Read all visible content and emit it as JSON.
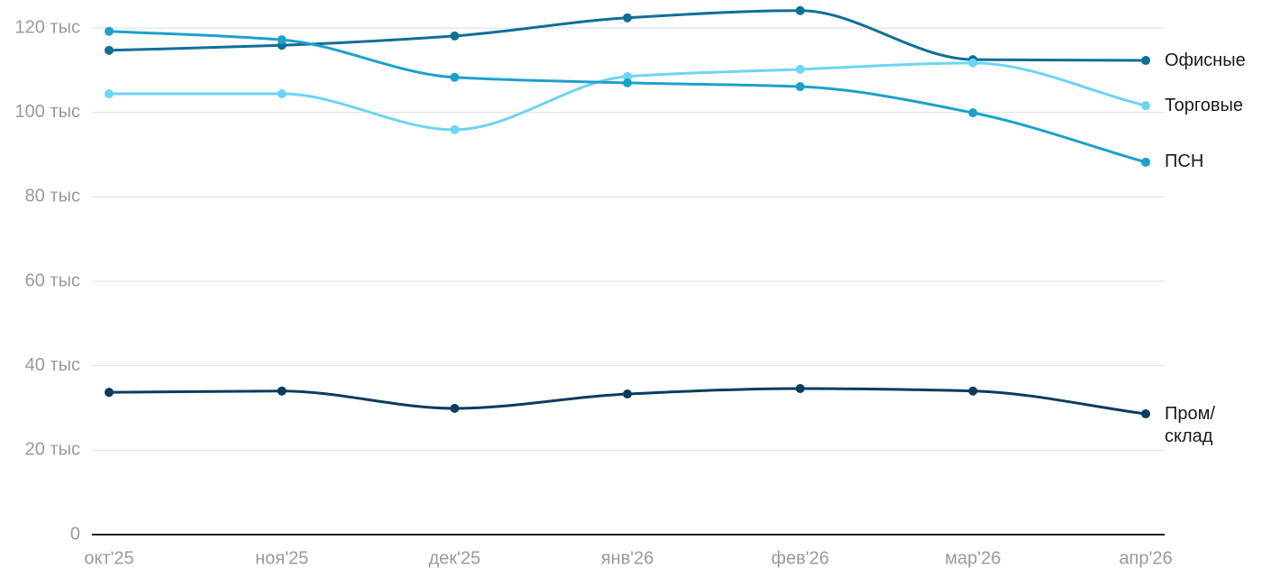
{
  "chart_data": {
    "type": "line",
    "categories": [
      "окт'25",
      "ноя'25",
      "дек'25",
      "янв'26",
      "фев'26",
      "мар'26",
      "апр'26"
    ],
    "series": [
      {
        "name": "Офисные",
        "color": "#0e6f97",
        "values": [
          114700,
          115900,
          118100,
          122400,
          124100,
          112500,
          112300
        ]
      },
      {
        "name": "Торговые",
        "color": "#6dd4f4",
        "values": [
          104400,
          104400,
          95900,
          108500,
          110200,
          111700,
          101600
        ]
      },
      {
        "name": "ПСН",
        "color": "#1ca1cb",
        "values": [
          119200,
          117200,
          108300,
          107000,
          106100,
          99900,
          88200
        ]
      },
      {
        "name": "Пром/склад",
        "color": "#0b3c5d",
        "values": [
          33700,
          34000,
          29900,
          33300,
          34600,
          34000,
          28600
        ]
      }
    ],
    "ylim": [
      0,
      120000
    ],
    "yticks": [
      0,
      {
        "value": 20000,
        "label": "20 тыс"
      },
      {
        "value": 40000,
        "label": "40 тыс"
      },
      {
        "value": 60000,
        "label": "60 тыс"
      },
      {
        "value": 80000,
        "label": "80 тыс"
      },
      {
        "value": 100000,
        "label": "100 тыс"
      },
      {
        "value": 120000,
        "label": "120 тыс"
      }
    ],
    "grid": true
  }
}
